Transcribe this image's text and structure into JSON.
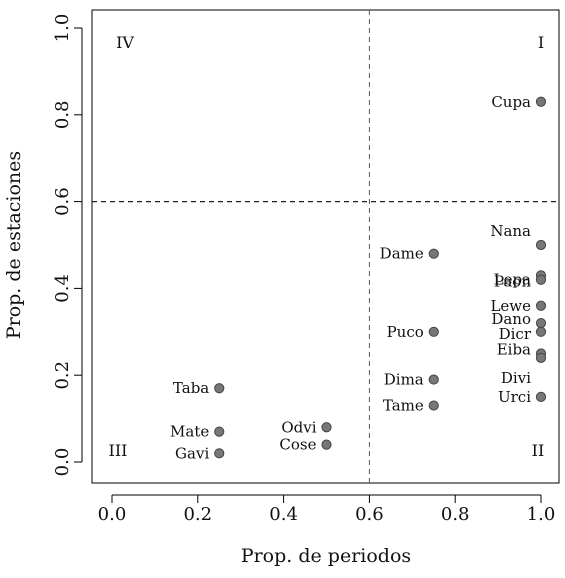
{
  "chart_data": {
    "type": "scatter",
    "title": "",
    "xlabel": "Prop. de periodos",
    "ylabel": "Prop. de estaciones",
    "xlim": [
      0.0,
      1.0
    ],
    "ylim": [
      0.0,
      1.0
    ],
    "x_ticks": [
      0.0,
      0.2,
      0.4,
      0.6,
      0.8,
      1.0
    ],
    "y_ticks": [
      0.0,
      0.2,
      0.4,
      0.6,
      0.8,
      1.0
    ],
    "x_tick_labels": [
      "0.0",
      "0.2",
      "0.4",
      "0.6",
      "0.8",
      "1.0"
    ],
    "y_tick_labels": [
      "0.0",
      "0.2",
      "0.4",
      "0.6",
      "0.8",
      "1.0"
    ],
    "grid": false,
    "reference_lines": {
      "vertical_x": 0.6,
      "horizontal_y": 0.6,
      "style": "dashed"
    },
    "quadrants": [
      {
        "label": "I",
        "position": "top-right"
      },
      {
        "label": "II",
        "position": "bottom-right"
      },
      {
        "label": "III",
        "position": "bottom-left"
      },
      {
        "label": "IV",
        "position": "top-left"
      }
    ],
    "points": [
      {
        "label": "Cupa",
        "x": 1.0,
        "y": 0.83
      },
      {
        "label": "Nana",
        "x": 1.0,
        "y": 0.5
      },
      {
        "label": "Lepa",
        "x": 1.0,
        "y": 0.43
      },
      {
        "label": "Paon",
        "x": 1.0,
        "y": 0.42
      },
      {
        "label": "Lewe",
        "x": 1.0,
        "y": 0.36
      },
      {
        "label": "Dano",
        "x": 1.0,
        "y": 0.32
      },
      {
        "label": "Dicr",
        "x": 1.0,
        "y": 0.3
      },
      {
        "label": "Eiba",
        "x": 1.0,
        "y": 0.25
      },
      {
        "label": "Divi",
        "x": 1.0,
        "y": 0.24
      },
      {
        "label": "Urci",
        "x": 1.0,
        "y": 0.15
      },
      {
        "label": "Dame",
        "x": 0.75,
        "y": 0.48
      },
      {
        "label": "Puco",
        "x": 0.75,
        "y": 0.3
      },
      {
        "label": "Dima",
        "x": 0.75,
        "y": 0.19
      },
      {
        "label": "Tame",
        "x": 0.75,
        "y": 0.13
      },
      {
        "label": "Odvi",
        "x": 0.5,
        "y": 0.08
      },
      {
        "label": "Cose",
        "x": 0.5,
        "y": 0.04
      },
      {
        "label": "Taba",
        "x": 0.25,
        "y": 0.17
      },
      {
        "label": "Mate",
        "x": 0.25,
        "y": 0.07
      },
      {
        "label": "Gavi",
        "x": 0.25,
        "y": 0.02
      }
    ],
    "point_color": "#777777",
    "point_edge_color": "#444444"
  }
}
